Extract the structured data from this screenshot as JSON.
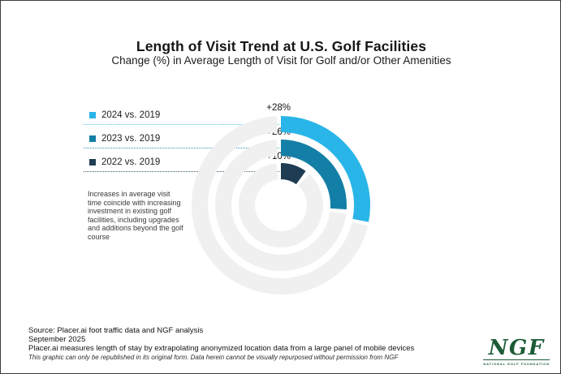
{
  "header": {
    "title": "Length of Visit Trend at U.S. Golf Facilities",
    "subtitle": "Change (%) in Average Length of Visit for Golf and/or Other Amenities"
  },
  "chart_data": {
    "type": "radial-bar",
    "description": "Concentric gauge rings; full circle = 100%, arcs start at 12 o'clock and run clockwise",
    "unit": "%",
    "full_circle_value": 100,
    "direction": "clockwise",
    "track_color": "#F0F0F1",
    "series": [
      {
        "label": "2024 vs. 2019",
        "value": 28,
        "value_label": "+28%",
        "color": "#29B5E8"
      },
      {
        "label": "2023 vs. 2019",
        "value": 26,
        "value_label": "+26%",
        "color": "#147FA6"
      },
      {
        "label": "2022 vs. 2019",
        "value": 10,
        "value_label": "+10%",
        "color": "#1E3D52"
      }
    ]
  },
  "annotation": {
    "text": "Increases in average visit time coincide with increasing investment in existing golf facilities, including upgrades and additions beyond the golf course"
  },
  "footer": {
    "source": "Source: Placer.ai foot traffic data and NGF analysis",
    "date": "September 2025",
    "method": "Placer.ai measures length of stay by extrapolating anonymized location data from a large panel of mobile devices",
    "disclaimer": "This graphic can only be republished in its original form. Data herein cannot be visually repurposed without permission from NGF"
  },
  "logo": {
    "text": "NGF",
    "tagline": "NATIONAL GOLF FOUNDATION",
    "color": "#1B5B36"
  }
}
